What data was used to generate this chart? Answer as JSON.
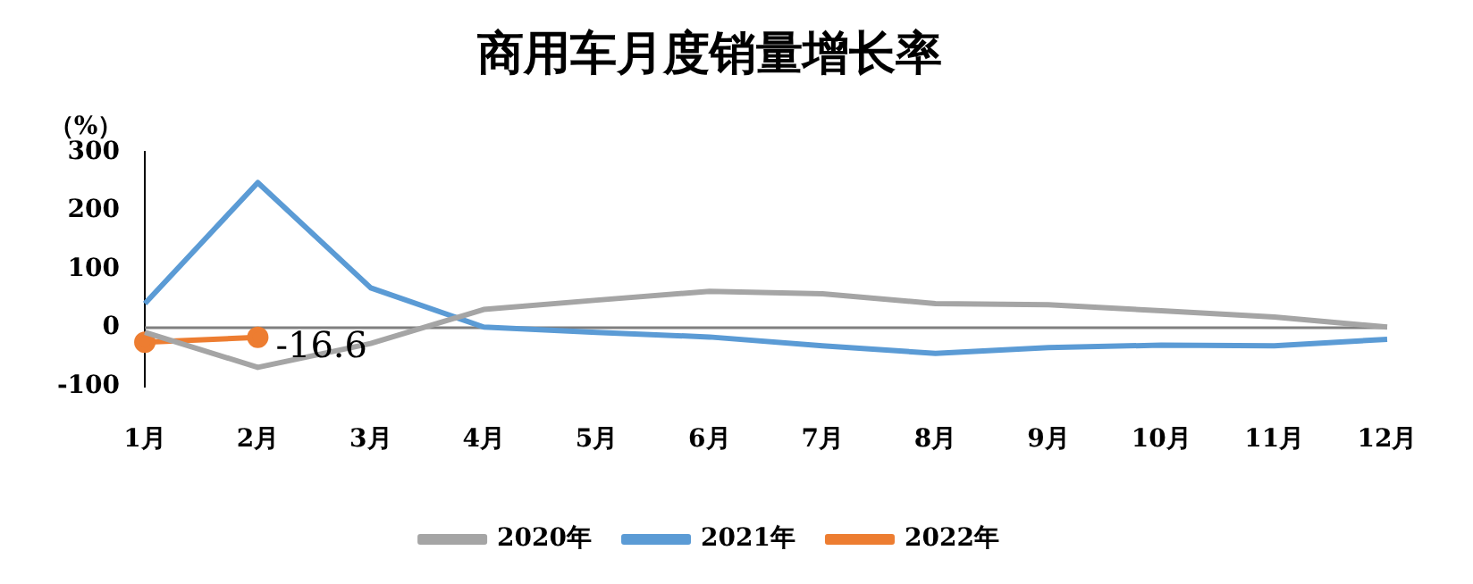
{
  "chart_data": {
    "type": "line",
    "title": "商用车月度销量增长率",
    "ylabel": "（%）",
    "categories": [
      "1月",
      "2月",
      "3月",
      "4月",
      "5月",
      "6月",
      "7月",
      "8月",
      "9月",
      "10月",
      "11月",
      "12月"
    ],
    "series": [
      {
        "name": "2020年",
        "color": "#a5a5a5",
        "values": [
          -8,
          -68,
          -27,
          31,
          47,
          62,
          58,
          41,
          39,
          29,
          18,
          1
        ],
        "marker": "none"
      },
      {
        "name": "2021年",
        "color": "#5b9bd5",
        "values": [
          41,
          248,
          68,
          1,
          -8,
          -16,
          -31,
          -44,
          -34,
          -30,
          -31,
          -20
        ],
        "marker": "none"
      },
      {
        "name": "2022年",
        "color": "#ed7d31",
        "values": [
          -25,
          -16.6,
          null,
          null,
          null,
          null,
          null,
          null,
          null,
          null,
          null,
          null
        ],
        "marker": "circle",
        "value_labels": [
          null,
          "-16.6",
          null,
          null,
          null,
          null,
          null,
          null,
          null,
          null,
          null,
          null
        ]
      }
    ],
    "ylim": [
      -100,
      300
    ],
    "yticks": [
      -100,
      0,
      100,
      200,
      300
    ],
    "ref_lines": [
      {
        "axis": "y",
        "value": 0,
        "color": "#7f7f7f"
      }
    ],
    "grid": false,
    "legend": "bottom",
    "line_style": "solid"
  }
}
